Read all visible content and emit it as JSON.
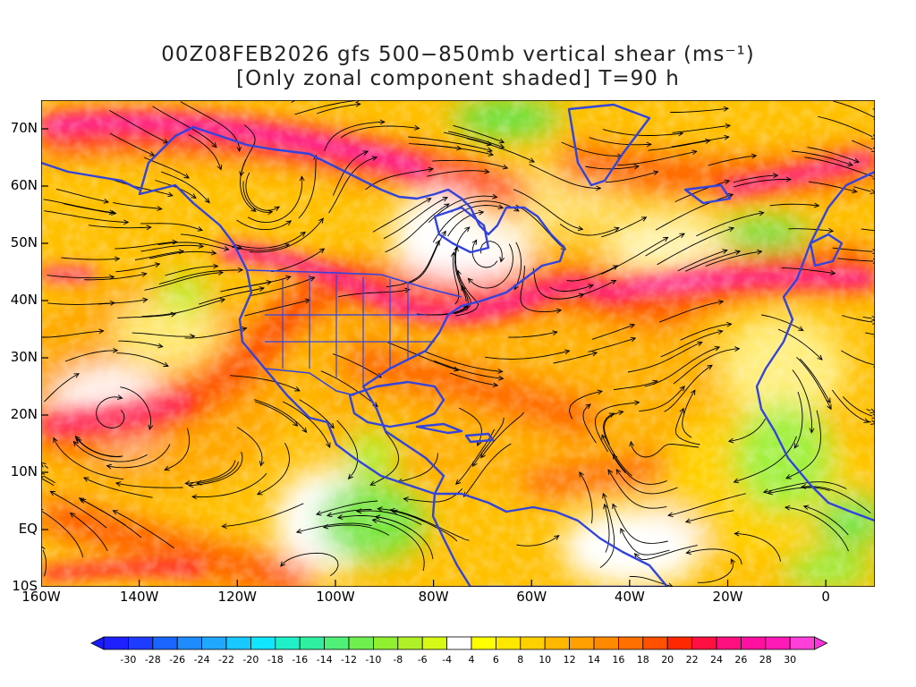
{
  "title": {
    "line1": "00Z08FEB2026 gfs 500−850mb vertical shear (ms⁻¹)",
    "line2": "[Only zonal component shaded] T=90 h"
  },
  "map": {
    "projection": "latlon",
    "lon_range": [
      -160,
      10
    ],
    "lat_range": [
      -10,
      75
    ],
    "lat_ticks": [
      {
        "value": 70,
        "label": "70N"
      },
      {
        "value": 60,
        "label": "60N"
      },
      {
        "value": 50,
        "label": "50N"
      },
      {
        "value": 40,
        "label": "40N"
      },
      {
        "value": 30,
        "label": "30N"
      },
      {
        "value": 20,
        "label": "20N"
      },
      {
        "value": 10,
        "label": "10N"
      },
      {
        "value": 0,
        "label": "EQ"
      },
      {
        "value": -10,
        "label": "10S"
      }
    ],
    "lon_ticks": [
      {
        "value": -160,
        "label": "160W"
      },
      {
        "value": -140,
        "label": "140W"
      },
      {
        "value": -120,
        "label": "120W"
      },
      {
        "value": -100,
        "label": "100W"
      },
      {
        "value": -80,
        "label": "80W"
      },
      {
        "value": -60,
        "label": "60W"
      },
      {
        "value": -40,
        "label": "40W"
      },
      {
        "value": -20,
        "label": "20W"
      },
      {
        "value": 0,
        "label": "0"
      }
    ],
    "coastline_color": "#3344dd",
    "streamline_color": "#000000"
  },
  "colorbar": {
    "levels": [
      "-30",
      "-28",
      "-26",
      "-24",
      "-22",
      "-20",
      "-18",
      "-16",
      "-14",
      "-12",
      "-10",
      "-8",
      "-6",
      "-4",
      "4",
      "6",
      "8",
      "10",
      "12",
      "14",
      "16",
      "18",
      "20",
      "22",
      "24",
      "26",
      "28",
      "30"
    ],
    "colors": [
      "#2020ff",
      "#1e3cff",
      "#1a64ff",
      "#1e8cff",
      "#20a8ff",
      "#19c8ff",
      "#12e6ff",
      "#20f0c8",
      "#30f0a0",
      "#50f078",
      "#70f050",
      "#90f030",
      "#b0f028",
      "#d8f818",
      "#ffffff",
      "#ffff00",
      "#ffe800",
      "#ffd000",
      "#ffb800",
      "#ffa000",
      "#ff8a00",
      "#ff7000",
      "#ff5000",
      "#ff2800",
      "#ff1040",
      "#ff1080",
      "#ff10a0",
      "#ff1ab8",
      "#ff40d8"
    ],
    "under_color": "#1a1aff",
    "over_color": "#ff33dd"
  }
}
